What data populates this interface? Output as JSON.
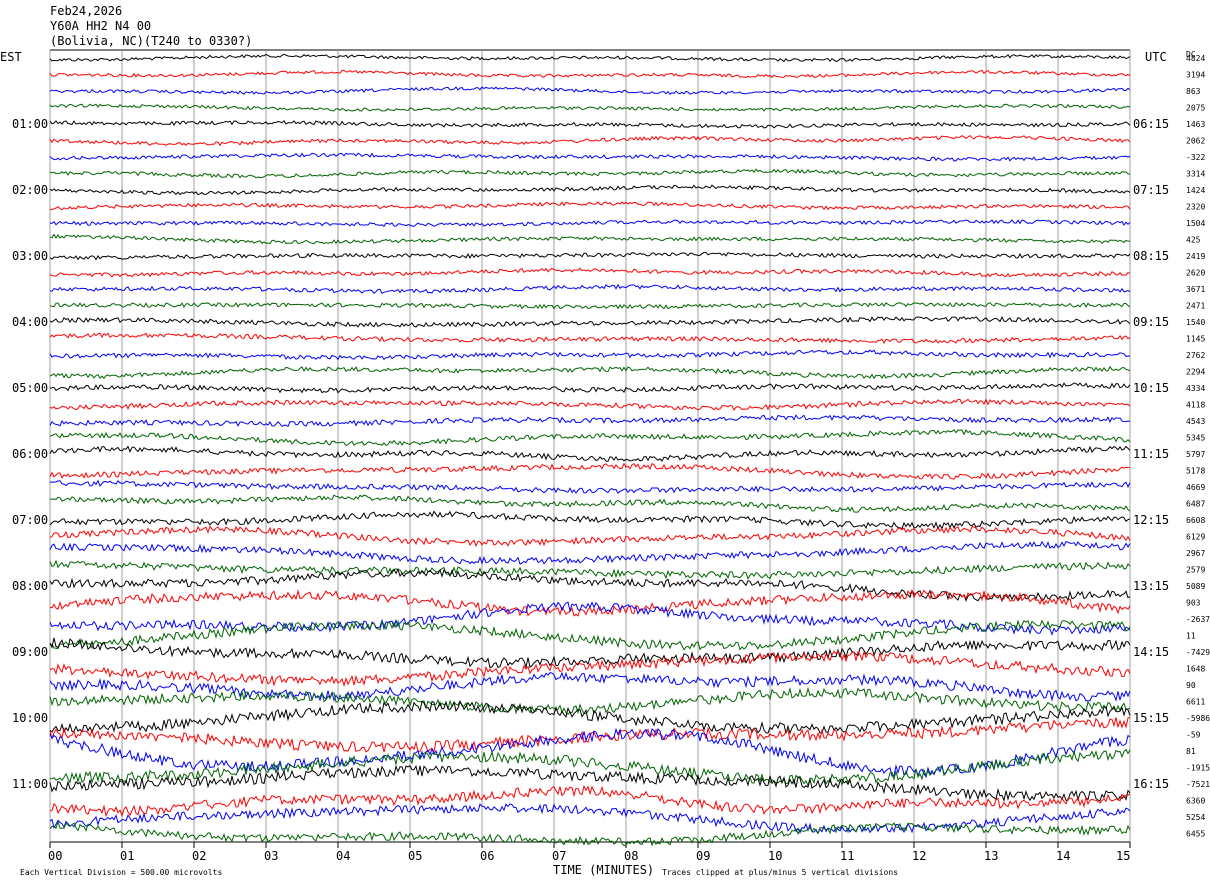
{
  "header": {
    "date": "Feb24,2026",
    "station": "Y60A HH2 N4 00",
    "location": "(Bolivia, NC)(T240 to 0330?)"
  },
  "axes": {
    "left_timezone": "EST",
    "right_timezone": "UTC",
    "dc_label": "DC",
    "x_title": "TIME (MINUTES)"
  },
  "footer": {
    "division": "Each Vertical Division =  500.00 microvolts",
    "clip_note": "Traces clipped at plus/minus 5 vertical divisions"
  },
  "chart_data": {
    "type": "line",
    "description_kind": "helicorder",
    "x_ticks": [
      "00",
      "01",
      "02",
      "03",
      "04",
      "05",
      "06",
      "07",
      "08",
      "09",
      "10",
      "11",
      "12",
      "13",
      "14",
      "15"
    ],
    "xlim": [
      0,
      15
    ],
    "left_hour_labels": [
      {
        "row": 4,
        "text": "01:00"
      },
      {
        "row": 8,
        "text": "02:00"
      },
      {
        "row": 12,
        "text": "03:00"
      },
      {
        "row": 16,
        "text": "04:00"
      },
      {
        "row": 20,
        "text": "05:00"
      },
      {
        "row": 24,
        "text": "06:00"
      },
      {
        "row": 28,
        "text": "07:00"
      },
      {
        "row": 32,
        "text": "08:00"
      },
      {
        "row": 36,
        "text": "09:00"
      },
      {
        "row": 40,
        "text": "10:00"
      },
      {
        "row": 44,
        "text": "11:00"
      }
    ],
    "right_hour_labels": [
      {
        "row": 4,
        "text": "06:15"
      },
      {
        "row": 8,
        "text": "07:15"
      },
      {
        "row": 12,
        "text": "08:15"
      },
      {
        "row": 16,
        "text": "09:15"
      },
      {
        "row": 20,
        "text": "10:15"
      },
      {
        "row": 24,
        "text": "11:15"
      },
      {
        "row": 28,
        "text": "12:15"
      },
      {
        "row": 32,
        "text": "13:15"
      },
      {
        "row": 36,
        "text": "14:15"
      },
      {
        "row": 40,
        "text": "15:15"
      },
      {
        "row": 44,
        "text": "16:15"
      }
    ],
    "trace_colors": [
      "#000000",
      "#ff0000",
      "#0000ff",
      "#006400"
    ],
    "dc_offsets": [
      "4824",
      "3194",
      "863",
      "2075",
      "1463",
      "2062",
      "-322",
      "3314",
      "1424",
      "2320",
      "1504",
      "425",
      "2419",
      "2620",
      "3671",
      "2471",
      "1540",
      "1145",
      "2762",
      "2294",
      "4334",
      "4118",
      "4543",
      "5345",
      "5797",
      "5178",
      "4669",
      "6487",
      "6608",
      "6129",
      "2967",
      "2579",
      "5089",
      "903",
      "-2637",
      "11",
      "-7429",
      "1648",
      "90",
      "6611",
      "-5986",
      "-59",
      "81",
      "-1915",
      "-7521",
      "6360",
      "5254",
      "6455"
    ],
    "trace_activity": [
      0.35,
      0.35,
      0.35,
      0.35,
      0.4,
      0.4,
      0.4,
      0.4,
      0.4,
      0.4,
      0.4,
      0.4,
      0.45,
      0.45,
      0.45,
      0.45,
      0.5,
      0.5,
      0.5,
      0.5,
      0.55,
      0.55,
      0.55,
      0.55,
      0.6,
      0.6,
      0.6,
      0.6,
      0.7,
      0.7,
      0.75,
      0.8,
      0.9,
      1.0,
      1.0,
      1.0,
      1.1,
      1.1,
      1.1,
      1.1,
      1.2,
      1.2,
      1.2,
      1.2,
      1.2,
      1.1,
      1.0,
      0.9
    ]
  }
}
